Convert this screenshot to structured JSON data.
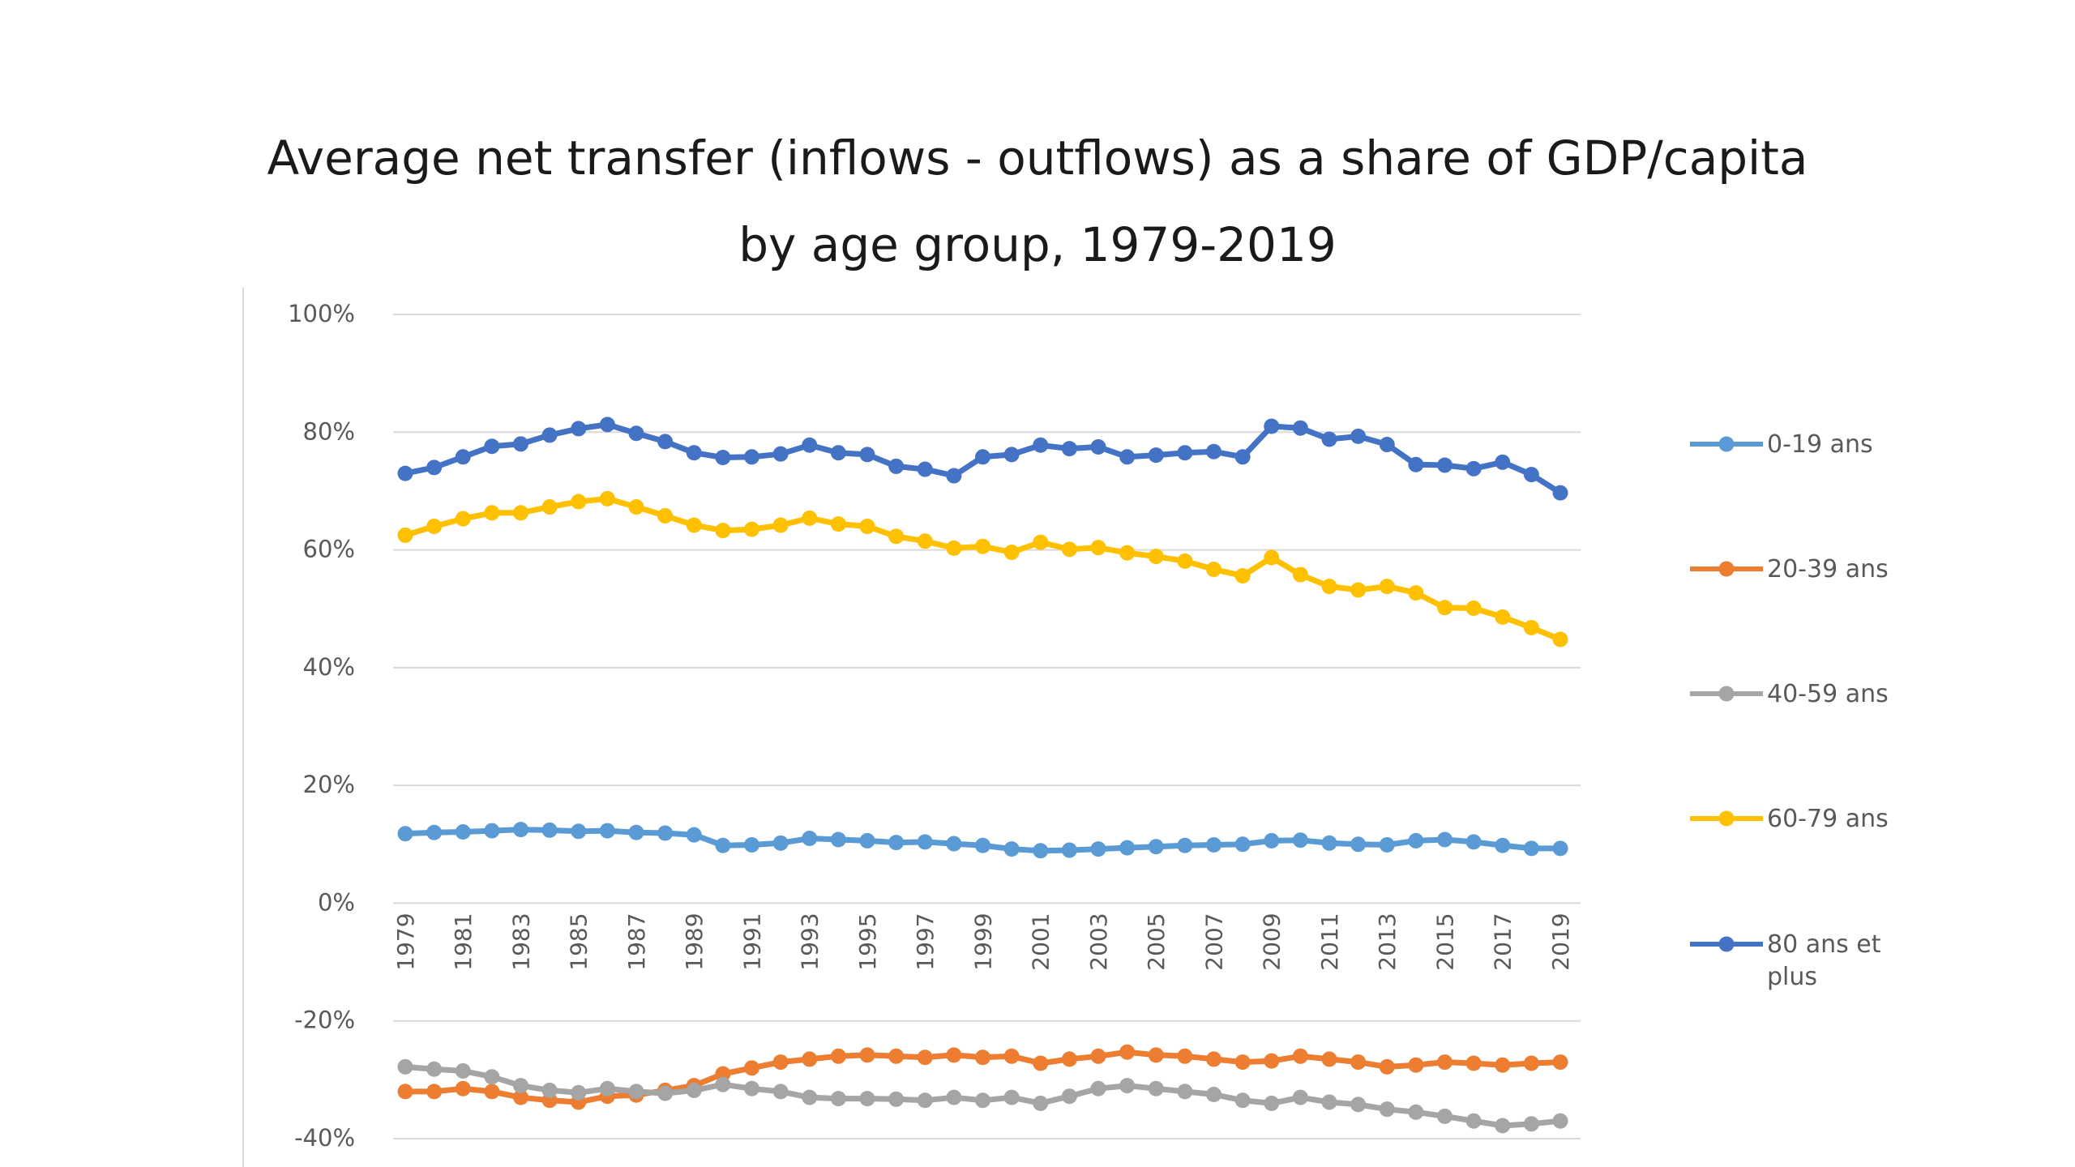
{
  "chart_data": {
    "type": "line",
    "title": "Average net transfer (inflows - outflows) as a share of GDP/capita",
    "subtitle": "by age group, 1979-2019",
    "xlabel": "",
    "ylabel": "",
    "ylim": [
      -40,
      100
    ],
    "yticks": [
      100,
      80,
      60,
      40,
      20,
      0,
      -20,
      -40
    ],
    "ytick_labels": [
      "100%",
      "80%",
      "60%",
      "40%",
      "20%",
      "0%",
      "-20%",
      "-40%"
    ],
    "grid": true,
    "legend_position": "right",
    "x": [
      1979,
      1980,
      1981,
      1982,
      1983,
      1984,
      1985,
      1986,
      1987,
      1988,
      1989,
      1990,
      1991,
      1992,
      1993,
      1994,
      1995,
      1996,
      1997,
      1998,
      1999,
      2000,
      2001,
      2002,
      2003,
      2004,
      2005,
      2006,
      2007,
      2008,
      2009,
      2010,
      2011,
      2012,
      2013,
      2014,
      2015,
      2016,
      2017,
      2018,
      2019
    ],
    "xtick_labels": [
      "1979",
      "1981",
      "1983",
      "1985",
      "1987",
      "1989",
      "1991",
      "1993",
      "1995",
      "1997",
      "1999",
      "2001",
      "2003",
      "2005",
      "2007",
      "2009",
      "2011",
      "2013",
      "2015",
      "2017",
      "2019"
    ],
    "series": [
      {
        "name": "0-19 ans",
        "color": "#5B9BD5",
        "values": [
          11.8,
          12.0,
          12.1,
          12.3,
          12.5,
          12.4,
          12.2,
          12.3,
          12.0,
          11.9,
          11.6,
          9.8,
          9.9,
          10.2,
          11.0,
          10.8,
          10.6,
          10.3,
          10.4,
          10.1,
          9.8,
          9.2,
          8.9,
          9.0,
          9.2,
          9.4,
          9.6,
          9.8,
          9.9,
          10.0,
          10.6,
          10.7,
          10.2,
          10.0,
          9.9,
          10.6,
          10.8,
          10.4,
          9.8,
          9.3,
          9.3
        ]
      },
      {
        "name": "20-39 ans",
        "color": "#ED7D31",
        "values": [
          -32.0,
          -32.0,
          -31.5,
          -32.0,
          -33.0,
          -33.5,
          -33.8,
          -32.8,
          -32.6,
          -31.8,
          -31.0,
          -29.0,
          -28.0,
          -27.0,
          -26.5,
          -26.0,
          -25.8,
          -26.0,
          -26.2,
          -25.8,
          -26.2,
          -26.0,
          -27.2,
          -26.5,
          -26.0,
          -25.3,
          -25.8,
          -26.0,
          -26.5,
          -27.0,
          -26.8,
          -26.0,
          -26.5,
          -27.0,
          -27.8,
          -27.5,
          -27.0,
          -27.2,
          -27.5,
          -27.2,
          -27.0
        ]
      },
      {
        "name": "40-59 ans",
        "color": "#A5A5A5",
        "values": [
          -27.8,
          -28.2,
          -28.5,
          -29.5,
          -31.0,
          -31.8,
          -32.2,
          -31.5,
          -32.0,
          -32.3,
          -31.8,
          -30.8,
          -31.5,
          -32.0,
          -33.0,
          -33.2,
          -33.2,
          -33.3,
          -33.5,
          -33.0,
          -33.5,
          -33.0,
          -34.0,
          -32.8,
          -31.5,
          -31.0,
          -31.5,
          -32.0,
          -32.5,
          -33.5,
          -34.0,
          -33.0,
          -33.8,
          -34.2,
          -35.0,
          -35.5,
          -36.2,
          -37.0,
          -37.8,
          -37.5,
          -37.0
        ]
      },
      {
        "name": "60-79 ans",
        "color": "#FFC000",
        "values": [
          62.5,
          64.0,
          65.3,
          66.3,
          66.3,
          67.3,
          68.2,
          68.7,
          67.3,
          65.8,
          64.2,
          63.3,
          63.5,
          64.2,
          65.4,
          64.4,
          64.0,
          62.3,
          61.5,
          60.3,
          60.6,
          59.6,
          61.3,
          60.1,
          60.4,
          59.5,
          58.9,
          58.1,
          56.7,
          55.6,
          58.7,
          55.8,
          53.8,
          53.2,
          53.8,
          52.7,
          50.2,
          50.1,
          48.6,
          46.8,
          44.8
        ]
      },
      {
        "name": "80 ans et plus",
        "color": "#4472C4",
        "values": [
          73.0,
          74.0,
          75.8,
          77.6,
          78.0,
          79.5,
          80.6,
          81.3,
          79.8,
          78.4,
          76.5,
          75.7,
          75.8,
          76.3,
          77.8,
          76.5,
          76.2,
          74.2,
          73.7,
          72.6,
          75.8,
          76.2,
          77.8,
          77.2,
          77.5,
          75.8,
          76.1,
          76.5,
          76.7,
          75.8,
          81.0,
          80.7,
          78.8,
          79.3,
          77.9,
          74.5,
          74.4,
          73.8,
          74.9,
          72.8,
          69.7
        ]
      }
    ]
  }
}
